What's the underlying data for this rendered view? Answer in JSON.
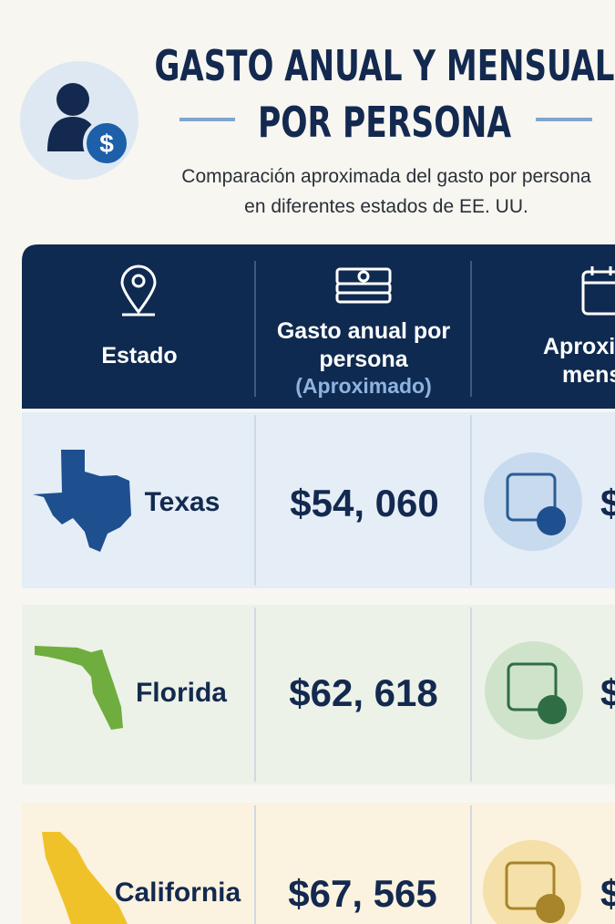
{
  "header": {
    "title_lines": [
      "GASTO ANUAL Y MENSUAL",
      "POR PERSONA"
    ],
    "subtitle_lines": [
      "Comparación aproximada del gasto por persona",
      "en diferentes estados de EE. UU."
    ]
  },
  "table": {
    "columns": [
      {
        "label": "Estado"
      },
      {
        "label": "Gasto anual por persona",
        "note": "(Aproximado)"
      },
      {
        "label_lines": [
          "Aproxi",
          "mens"
        ]
      }
    ],
    "rows": [
      [
        "Texas",
        "$54, 060",
        "$"
      ],
      [
        "Florida",
        "$62, 618",
        "$"
      ],
      [
        "California",
        "$67, 565",
        "$"
      ]
    ]
  }
}
